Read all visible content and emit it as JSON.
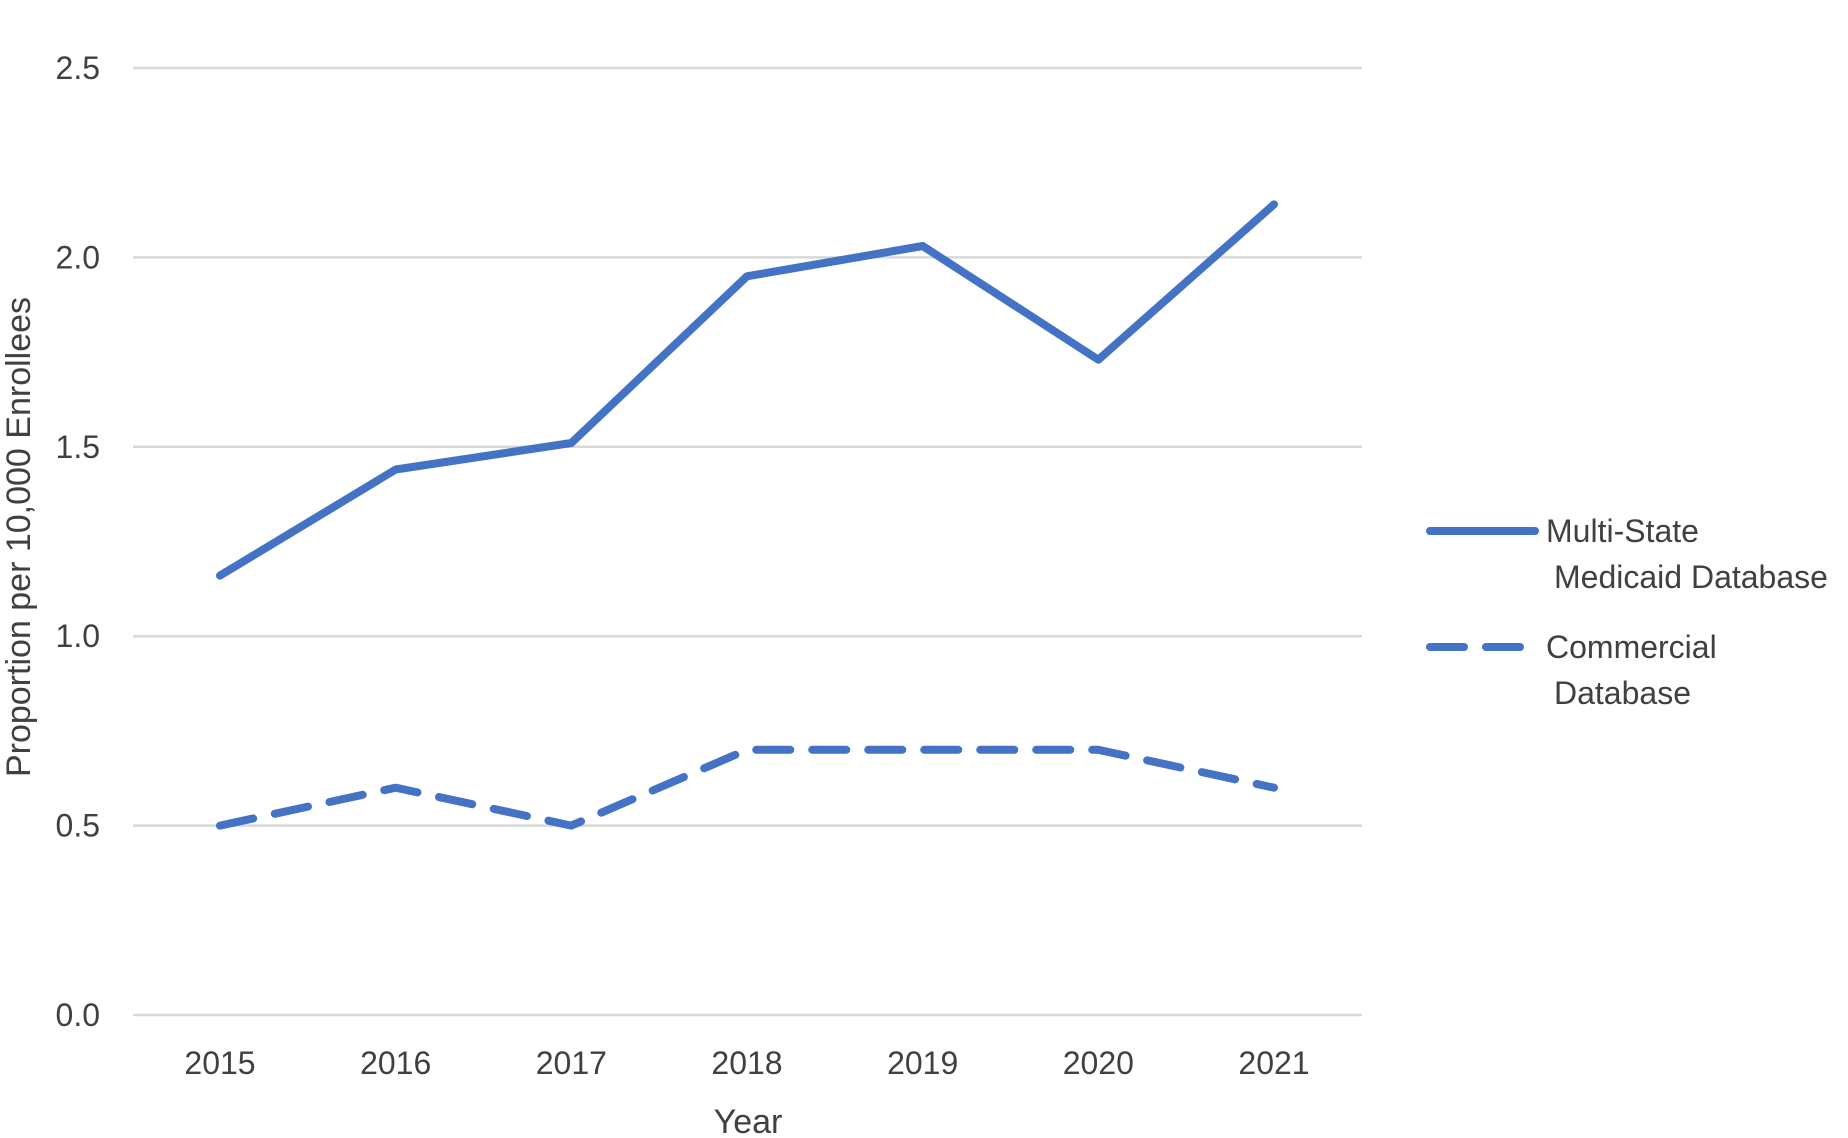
{
  "chart_data": {
    "type": "line",
    "title": "",
    "xlabel": "Year",
    "ylabel": "Proportion per 10,000 Enrollees",
    "categories": [
      "2015",
      "2016",
      "2017",
      "2018",
      "2019",
      "2020",
      "2021"
    ],
    "ylim": [
      0,
      2.5
    ],
    "yticks": [
      "0.0",
      "0.5",
      "1.0",
      "1.5",
      "2.0",
      "2.5"
    ],
    "grid": true,
    "legend_position": "right",
    "series": [
      {
        "name": "Multi-State Medicaid Database",
        "legend_lines": [
          "Multi-State",
          "Medicaid Database"
        ],
        "style": "solid",
        "color": "#4472c4",
        "values": [
          1.16,
          1.44,
          1.51,
          1.95,
          2.03,
          1.73,
          2.14
        ]
      },
      {
        "name": "Commercial Database",
        "legend_lines": [
          "Commercial",
          "Database"
        ],
        "style": "dashed",
        "color": "#4472c4",
        "values": [
          0.5,
          0.6,
          0.5,
          0.7,
          0.7,
          0.7,
          0.6
        ]
      }
    ]
  }
}
